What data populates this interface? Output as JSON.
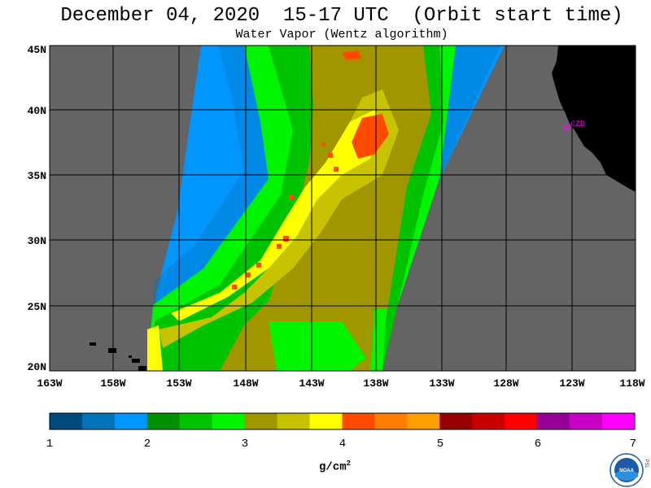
{
  "title": "December 04, 2020  15-17 UTC  (Orbit start time)",
  "subtitle": "Water Vapor (Wentz algorithm)",
  "map": {
    "lat_labels": [
      "45N",
      "40N",
      "35N",
      "30N",
      "25N",
      "20N"
    ],
    "lon_labels": [
      "163W",
      "158W",
      "153W",
      "148W",
      "143W",
      "138W",
      "133W",
      "128W",
      "123W",
      "118W"
    ],
    "station_label": "CZD",
    "land_color": "#000000",
    "nodata_color": "#646464",
    "station_color": "#ff00ff"
  },
  "colorbar": {
    "tick_labels": [
      "1",
      "2",
      "3",
      "4",
      "5",
      "6",
      "7"
    ],
    "units": "g/cm",
    "units_exp": "2",
    "colors": [
      "#004b7d",
      "#0073b9",
      "#0096ff",
      "#009100",
      "#00c300",
      "#00f500",
      "#a09600",
      "#c8c300",
      "#ffff00",
      "#ff4b00",
      "#ff7d00",
      "#ffa000",
      "#960000",
      "#c80000",
      "#ff0000",
      "#960096",
      "#c800c8",
      "#ff00ff"
    ]
  },
  "logo": {
    "text": "NOAA",
    "side_letters": "PSL"
  }
}
